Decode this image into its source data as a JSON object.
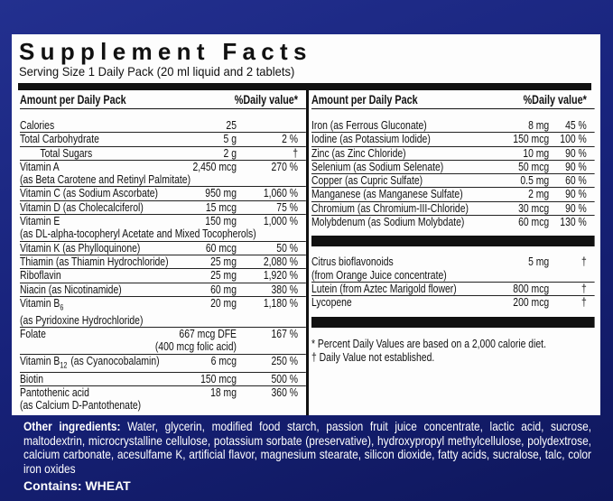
{
  "title": "Supplement Facts",
  "serving_size": "Serving Size 1 Daily Pack  (20 ml liquid and 2 tablets)",
  "left": {
    "header": [
      "Amount per Daily Pack",
      "%Daily value*"
    ],
    "rows": [
      {
        "name": "Calories",
        "amount": "25"
      },
      {
        "name": "Total Carbohydrate",
        "amount": "5 g",
        "dv": "2 %"
      },
      {
        "name": "Total Sugars",
        "amount": "2 g",
        "dv": "†"
      },
      {
        "name": "Vitamin A",
        "amount": "2,450 mcg",
        "dv": "270 %",
        "note": "(as Beta Carotene and Retinyl Palmitate)"
      },
      {
        "name": "Vitamin C (as Sodium Ascorbate)",
        "amount": "950 mg",
        "dv": "1,060 %"
      },
      {
        "name": "Vitamin D (as Cholecalciferol)",
        "amount": "15 mcg",
        "dv": "75 %"
      },
      {
        "name": "Vitamin E",
        "amount": "150 mg",
        "dv": "1,000 %",
        "note": "(as DL-alpha-tocopheryl Acetate and Mixed Tocopherols)"
      },
      {
        "name": "Vitamin K (as Phylloquinone)",
        "amount": "60 mcg",
        "dv": "50 %"
      },
      {
        "name": "Thiamin (as Thiamin Hydrochloride)",
        "amount": "25 mg",
        "dv": "2,080 %"
      },
      {
        "name": "Riboflavin",
        "amount": "25 mg",
        "dv": "1,920 %"
      },
      {
        "name": "Niacin (as Nicotinamide)",
        "amount": "60 mg",
        "dv": "380 %"
      },
      {
        "name": "Vitamin B",
        "sub": "6",
        "amount": "20 mg",
        "dv": "1,180 %",
        "note": "(as Pyridoxine Hydrochloride)"
      },
      {
        "name": "Folate",
        "amount": "667 mcg DFE",
        "dv": "167 %",
        "amount_note": "(400 mcg folic acid)"
      },
      {
        "name": "Vitamin B",
        "sub": "12",
        "name_rest": "(as Cyanocobalamin)",
        "amount": "6 mcg",
        "dv": "250 %"
      },
      {
        "name": "Biotin",
        "amount": "150 mcg",
        "dv": "500 %"
      },
      {
        "name": "Pantothenic acid",
        "amount": "18 mg",
        "dv": "360 %",
        "note": "(as Calcium D-Pantothenate)"
      }
    ]
  },
  "right": {
    "header": [
      "Amount per Daily Pack",
      "%Daily value*"
    ],
    "minerals": [
      {
        "name": "Iron (as Ferrous Gluconate)",
        "amount": "8 mg",
        "dv": "45 %"
      },
      {
        "name": "Iodine (as Potassium Iodide)",
        "amount": "150 mcg",
        "dv": "100 %"
      },
      {
        "name": "Zinc (as Zinc Chloride)",
        "amount": "10 mg",
        "dv": "90 %"
      },
      {
        "name": "Selenium (as Sodium Selenate)",
        "amount": "50 mcg",
        "dv": "90 %"
      },
      {
        "name": "Copper (as Cupric Sulfate)",
        "amount": "0.5 mg",
        "dv": "60 %"
      },
      {
        "name": "Manganese (as Manganese Sulfate)",
        "amount": "2 mg",
        "dv": "90 %"
      },
      {
        "name": "Chromium (as Chromium-III-Chloride)",
        "amount": "30 mcg",
        "dv": "90 %"
      },
      {
        "name": "Molybdenum (as Sodium Molybdate)",
        "amount": "60 mcg",
        "dv": "130 %"
      }
    ],
    "others": [
      {
        "name": "Citrus bioflavonoids",
        "amount": "5 mg",
        "dv": "†",
        "note": "(from Orange Juice concentrate)"
      },
      {
        "name": "Lutein (from Aztec Marigold flower)",
        "amount": "800 mcg",
        "dv": "†"
      },
      {
        "name": "Lycopene",
        "amount": "200 mcg",
        "dv": "†"
      }
    ],
    "footnotes": [
      "*  Percent Daily Values are based on a 2,000 calorie diet.",
      "†  Daily Value not established."
    ]
  },
  "other_ingredients": {
    "label": "Other ingredients:",
    "text": "Water, glycerin, modified food starch, passion fruit juice concentrate, lactic acid, sucrose, maltodextrin, microcrystalline cellulose, potassium sorbate (preservative), hydroxypropyl methylcellulose, polydextrose, calcium carbonate, acesulfame K, artificial flavor, magnesium stearate, silicon dioxide, fatty acids, sucralose, talc, color iron oxides"
  },
  "contains": {
    "label": "Contains:",
    "text": "WHEAT"
  }
}
